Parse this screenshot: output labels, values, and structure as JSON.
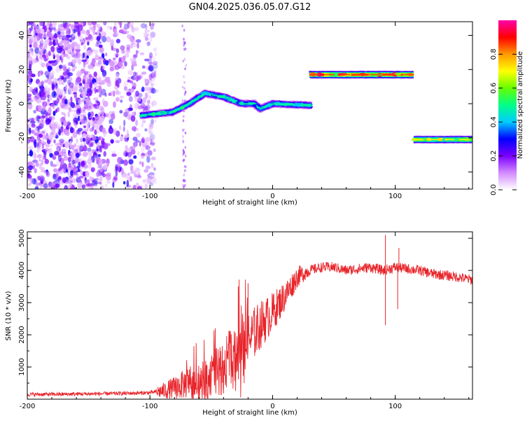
{
  "figure_title": "GN04.2025.036.05.07.G12",
  "chart_data": [
    {
      "type": "heatmap",
      "title": "GN04.2025.036.05.07.G12",
      "xlabel": "Height of straight line (km)",
      "ylabel": "Frequency (Hz)",
      "xlim": [
        -200,
        163
      ],
      "ylim": [
        -50,
        48
      ],
      "x_ticks": [
        -200,
        -100,
        0,
        100
      ],
      "y_ticks": [
        -40,
        -20,
        0,
        20,
        40
      ],
      "x_tick_labels": [
        "-200",
        "-100",
        "0",
        "100"
      ],
      "y_tick_labels": [
        "-40",
        "-20",
        "0",
        "20",
        "40"
      ],
      "colorbar": {
        "label": "Normalized spectral amplitude",
        "range": [
          0,
          1
        ],
        "ticks": [
          0,
          0.2,
          0.4,
          0.6,
          0.8
        ],
        "tick_labels": [
          "0.0",
          "0.2",
          "0.4",
          "0.6",
          "0.8"
        ],
        "colors": [
          "#ffffff",
          "#d48bff",
          "#7a00ff",
          "#0000ff",
          "#00ccff",
          "#00ff88",
          "#66ff00",
          "#ffff00",
          "#ff9900",
          "#ff0000",
          "#ff00aa"
        ]
      },
      "noise_region": {
        "x": [
          -200,
          -95
        ],
        "y": [
          -50,
          48
        ],
        "amplitude": [
          0.05,
          0.3
        ]
      },
      "segments": [
        {
          "x": [
            -108,
            -82,
            -68,
            -55,
            -40,
            -25,
            -15,
            -10,
            0,
            32
          ],
          "y": [
            -7,
            -5,
            0,
            6,
            4,
            0,
            0,
            -3,
            0,
            -1
          ],
          "amplitude": 0.5
        },
        {
          "x": [
            30,
            115
          ],
          "y": [
            17,
            17
          ],
          "amplitude": 0.9
        },
        {
          "x": [
            115,
            163
          ],
          "y": [
            -21,
            -21
          ],
          "amplitude": 0.75
        }
      ],
      "grid": false
    },
    {
      "type": "line",
      "xlabel": "Height of straight line (km)",
      "ylabel": "SNR (10 * v/v)",
      "xlim": [
        -200,
        163
      ],
      "ylim": [
        0,
        5200
      ],
      "x_ticks": [
        -200,
        -100,
        0,
        100
      ],
      "y_ticks": [
        1000,
        2000,
        3000,
        4000,
        5000
      ],
      "x_tick_labels": [
        "-200",
        "-100",
        "0",
        "100"
      ],
      "y_tick_labels": [
        "1000",
        "2000",
        "3000",
        "4000",
        "5000"
      ],
      "color": "#e8242a",
      "grid": false,
      "series": [
        {
          "x": [
            -200,
            -180,
            -160,
            -140,
            -120,
            -100,
            -90,
            -80,
            -70,
            -60,
            -50,
            -40,
            -30,
            -20,
            -10,
            0,
            10,
            20,
            30,
            40,
            50,
            60,
            70,
            80,
            90,
            100,
            110,
            120,
            130,
            140,
            150,
            163
          ],
          "y": [
            150,
            150,
            160,
            170,
            180,
            200,
            250,
            350,
            500,
            500,
            700,
            1000,
            1500,
            1800,
            2300,
            2700,
            3200,
            3800,
            4000,
            4100,
            4100,
            4000,
            4050,
            4100,
            4000,
            4100,
            4050,
            4000,
            3900,
            3850,
            3800,
            3700
          ]
        }
      ],
      "annotations": [
        {
          "x": 92,
          "y": 5100,
          "type": "spike"
        },
        {
          "x": 92,
          "y": 2300,
          "type": "dip"
        },
        {
          "x": 103,
          "y": 4700,
          "type": "spike"
        },
        {
          "x": 102,
          "y": 2800,
          "type": "dip"
        },
        {
          "x": -28,
          "y": 3500,
          "type": "spike"
        },
        {
          "x": -20,
          "y": 3600,
          "type": "spike"
        }
      ]
    }
  ]
}
